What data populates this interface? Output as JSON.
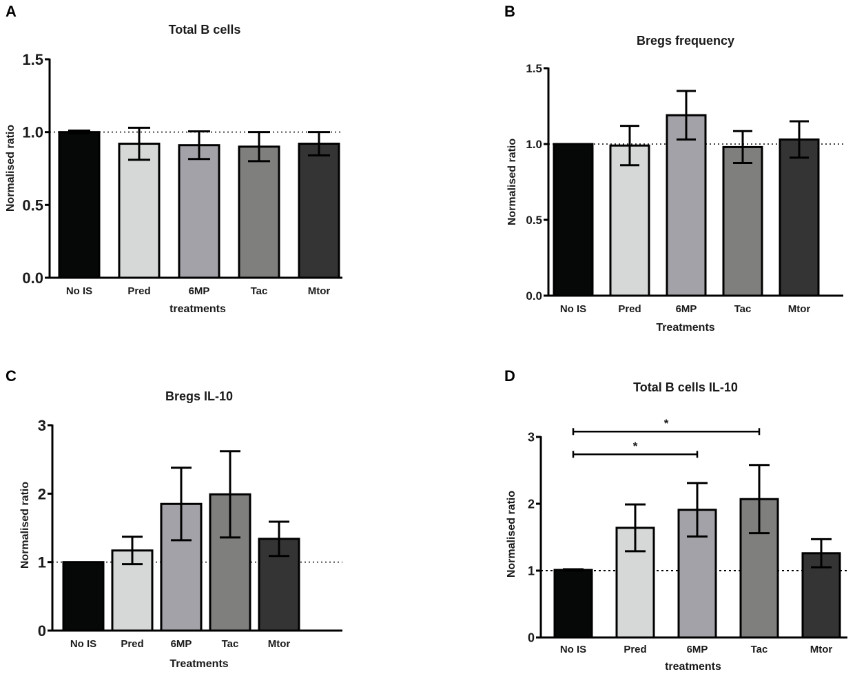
{
  "colors": {
    "No IS": "#060808",
    "Pred": "#d6d8d7",
    "6MP": "#a3a2a8",
    "Tac": "#7f807e",
    "Mtor": "#343434"
  },
  "chart_data": [
    {
      "panel": "A",
      "type": "bar",
      "title": "Total B cells",
      "xlabel": "treatments",
      "ylabel": "Normalised ratio",
      "categories": [
        "No IS",
        "Pred",
        "6MP",
        "Tac",
        "Mtor"
      ],
      "values": [
        1.0,
        0.92,
        0.91,
        0.9,
        0.92
      ],
      "errors": [
        0.01,
        0.11,
        0.095,
        0.1,
        0.08
      ],
      "ylim": [
        0,
        1.5
      ],
      "yticks": [
        0,
        0.5,
        1.0,
        1.5
      ],
      "ytick_labels": [
        "0.0",
        "0.5",
        "1.0",
        "1.5"
      ],
      "reference_line": 1.0,
      "significance": []
    },
    {
      "panel": "B",
      "type": "bar",
      "title": "Bregs frequency",
      "xlabel": "Treatments",
      "ylabel": "Normalised ratio",
      "categories": [
        "No IS",
        "Pred",
        "6MP",
        "Tac",
        "Mtor"
      ],
      "values": [
        1.0,
        0.99,
        1.19,
        0.98,
        1.03
      ],
      "errors": [
        0,
        0.13,
        0.16,
        0.105,
        0.12
      ],
      "ylim": [
        0,
        1.5
      ],
      "yticks": [
        0,
        0.5,
        1.0,
        1.5
      ],
      "ytick_labels": [
        "0.0",
        "0.5",
        "1.0",
        "1.5"
      ],
      "reference_line": 1.0,
      "significance": []
    },
    {
      "panel": "C",
      "type": "bar",
      "title": "Bregs IL-10",
      "xlabel": "Treatments",
      "ylabel": "Normalised ratio",
      "categories": [
        "No IS",
        "Pred",
        "6MP",
        "Tac",
        "Mtor"
      ],
      "values": [
        1.0,
        1.17,
        1.85,
        1.99,
        1.34
      ],
      "errors": [
        0,
        0.2,
        0.53,
        0.63,
        0.25
      ],
      "ylim": [
        0,
        3
      ],
      "yticks": [
        0,
        1,
        2,
        3
      ],
      "ytick_labels": [
        "0",
        "1",
        "2",
        "3"
      ],
      "reference_line": 1.0,
      "significance": []
    },
    {
      "panel": "D",
      "type": "bar",
      "title": "Total B cells IL-10",
      "xlabel": "treatments",
      "ylabel": "Normalised ratio",
      "categories": [
        "No IS",
        "Pred",
        "6MP",
        "Tac",
        "Mtor"
      ],
      "values": [
        1.01,
        1.64,
        1.91,
        2.07,
        1.26
      ],
      "errors": [
        0.01,
        0.35,
        0.4,
        0.51,
        0.21
      ],
      "ylim": [
        0,
        3
      ],
      "yticks": [
        0,
        1,
        2,
        3
      ],
      "ytick_labels": [
        "0",
        "1",
        "2",
        "3"
      ],
      "reference_line": 1.0,
      "significance": [
        {
          "from": "No IS",
          "to": "6MP",
          "label": "*",
          "y": 2.74
        },
        {
          "from": "No IS",
          "to": "Tac",
          "label": "*",
          "y": 3.08
        }
      ]
    }
  ]
}
